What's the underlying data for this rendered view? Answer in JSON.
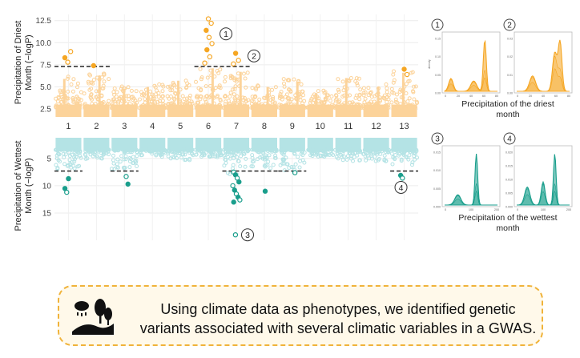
{
  "chart_data": [
    {
      "type": "scatter",
      "panel": "manhattan-driest",
      "ylabel_lines": [
        "Precipitation of Driest",
        "Month (−logP)"
      ],
      "yticks": [
        2.5,
        5.0,
        7.5,
        10.0,
        12.5
      ],
      "ytick_labels": [
        "2.5",
        "5.0",
        "7.5",
        "10.0",
        "12.5"
      ],
      "ylim": [
        1.6,
        13.2
      ],
      "chromosomes": [
        "1",
        "2",
        "3",
        "4",
        "5",
        "6",
        "7",
        "8",
        "9",
        "10",
        "11",
        "12",
        "13"
      ],
      "background_peak_by_chromosome": [
        6.2,
        6.6,
        5.1,
        5.3,
        6.0,
        7.4,
        7.0,
        5.3,
        5.9,
        4.6,
        6.3,
        5.3,
        6.9
      ],
      "significance_threshold": 7.3,
      "threshold_segments_chromosomes": [
        [
          "1",
          "2"
        ],
        [
          "6",
          "7"
        ]
      ],
      "significant_points": [
        {
          "chromosome": "1",
          "y": 8.3
        },
        {
          "chromosome": "1",
          "y": 7.8
        },
        {
          "chromosome": "1",
          "y": 9.0
        },
        {
          "chromosome": "2",
          "y": 7.4
        },
        {
          "chromosome": "6",
          "y": 12.7
        },
        {
          "chromosome": "6",
          "y": 12.2
        },
        {
          "chromosome": "6",
          "y": 11.4
        },
        {
          "chromosome": "6",
          "y": 10.6
        },
        {
          "chromosome": "6",
          "y": 9.9
        },
        {
          "chromosome": "6",
          "y": 9.2
        },
        {
          "chromosome": "6",
          "y": 8.4
        },
        {
          "chromosome": "6",
          "y": 7.7
        },
        {
          "chromosome": "7",
          "y": 8.8
        },
        {
          "chromosome": "7",
          "y": 8.0
        },
        {
          "chromosome": "7",
          "y": 7.6
        },
        {
          "chromosome": "13",
          "y": 7.0
        },
        {
          "chromosome": "13",
          "y": 6.4
        }
      ],
      "callouts": [
        {
          "label": "1",
          "chromosome": "6",
          "y": 11.0
        },
        {
          "label": "2",
          "chromosome": "7",
          "y": 8.5
        }
      ],
      "color": "#f5a623",
      "background_color": "#fcd39a"
    },
    {
      "type": "scatter",
      "panel": "manhattan-wettest",
      "ylabel_lines": [
        "Precipitation of Wettest",
        "Month (−logP)"
      ],
      "yticks": [
        5,
        10,
        15
      ],
      "ytick_labels": [
        "5",
        "10",
        "15"
      ],
      "ylim": [
        1.2,
        20.0
      ],
      "y_reversed": true,
      "chromosomes": [
        "1",
        "2",
        "3",
        "4",
        "5",
        "6",
        "7",
        "8",
        "9",
        "10",
        "11",
        "12",
        "13"
      ],
      "background_depth_by_chromosome": [
        6.9,
        5.2,
        7.0,
        4.8,
        5.5,
        4.8,
        8.0,
        7.1,
        7.2,
        4.8,
        5.5,
        5.5,
        6.2
      ],
      "significance_threshold": 7.3,
      "threshold_segments_chromosomes": [
        [
          "1"
        ],
        [
          "3"
        ],
        [
          "7",
          "8"
        ],
        [
          "9"
        ],
        [
          "13"
        ]
      ],
      "significant_points": [
        {
          "chromosome": "1",
          "y": 10.5
        },
        {
          "chromosome": "1",
          "y": 11.2
        },
        {
          "chromosome": "1",
          "y": 8.7
        },
        {
          "chromosome": "3",
          "y": 8.3
        },
        {
          "chromosome": "3",
          "y": 9.7
        },
        {
          "chromosome": "7",
          "y": 7.5
        },
        {
          "chromosome": "7",
          "y": 8.0
        },
        {
          "chromosome": "7",
          "y": 8.6
        },
        {
          "chromosome": "7",
          "y": 9.3
        },
        {
          "chromosome": "7",
          "y": 10.0
        },
        {
          "chromosome": "7",
          "y": 10.8
        },
        {
          "chromosome": "7",
          "y": 11.5
        },
        {
          "chromosome": "7",
          "y": 12.1
        },
        {
          "chromosome": "7",
          "y": 12.6
        },
        {
          "chromosome": "7",
          "y": 13.0
        },
        {
          "chromosome": "7",
          "y": 19.0
        },
        {
          "chromosome": "8",
          "y": 11.0
        },
        {
          "chromosome": "9",
          "y": 7.6
        },
        {
          "chromosome": "13",
          "y": 8.1
        },
        {
          "chromosome": "13",
          "y": 8.6
        }
      ],
      "callouts": [
        {
          "label": "3",
          "chromosome": "7",
          "y": 19.0
        },
        {
          "label": "4",
          "chromosome": "13",
          "y": 10.3
        }
      ],
      "color": "#1a9e8c",
      "background_color": "#b4e3e5"
    },
    {
      "type": "area",
      "panel": "density-1",
      "label": "1",
      "ylabel": "density",
      "xticks": [
        "0",
        "20",
        "40",
        "60",
        "80"
      ],
      "yticks": [
        "0.00",
        "0.05",
        "0.10",
        "0.15"
      ],
      "xlabel_lines": [
        "Precipitation of the driest",
        "month"
      ],
      "color": "#f5a623"
    },
    {
      "type": "area",
      "panel": "density-2",
      "label": "2",
      "xticks": [
        "0",
        "20",
        "40",
        "60",
        "80"
      ],
      "yticks": [
        "0.00",
        "0.01",
        "0.02",
        "0.03"
      ],
      "color": "#f5a623"
    },
    {
      "type": "area",
      "panel": "density-3",
      "label": "3",
      "xticks": [
        "0",
        "100",
        "200"
      ],
      "yticks": [
        "0.000",
        "0.005",
        "0.010",
        "0.015"
      ],
      "xlabel_lines": [
        "Precipitation of the wettest",
        "month"
      ],
      "color": "#1a9e8c"
    },
    {
      "type": "area",
      "panel": "density-4",
      "label": "4",
      "xticks": [
        "0",
        "100",
        "200"
      ],
      "yticks": [
        "0.000",
        "0.005",
        "0.010",
        "0.015",
        "0.020"
      ],
      "color": "#1a9e8c"
    }
  ],
  "caption": {
    "line1": "Using climate data as phenotypes, we identified genetic",
    "line2": "variants associated with several climatic variables in a GWAS."
  },
  "icon_name": "climate-landscape-icon"
}
